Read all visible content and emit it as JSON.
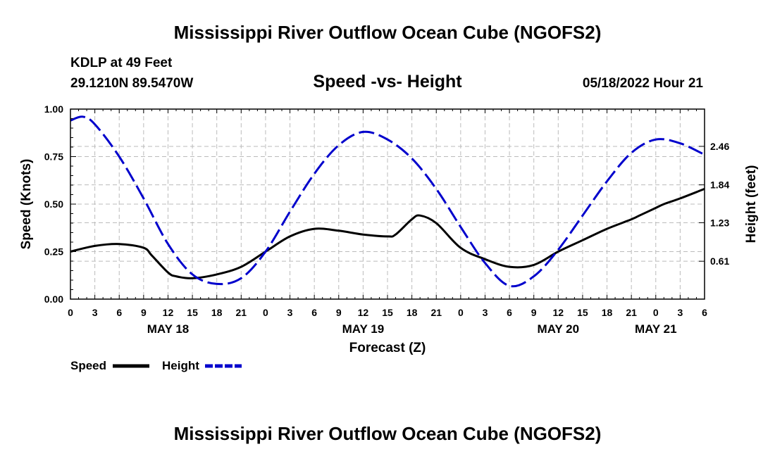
{
  "chart_data": {
    "type": "line",
    "title": "Mississippi River Outflow Ocean Cube (NGOFS2)",
    "footer_title": "Mississippi River Outflow Ocean Cube (NGOFS2)",
    "station": "KDLP at 49 Feet",
    "coordinates": "29.1210N  89.5470W",
    "subtitle": "Speed -vs- Height",
    "timestamp": "05/18/2022 Hour 21",
    "xlabel": "Forecast (Z)",
    "ylabel_left": "Speed (Knots)",
    "ylabel_right": "Height (feet)",
    "x_range_hours": [
      0,
      78
    ],
    "x_tick_step_hours": 3,
    "x_tick_labels": [
      "0",
      "3",
      "6",
      "9",
      "12",
      "15",
      "18",
      "21",
      "0",
      "3",
      "6",
      "9",
      "12",
      "15",
      "18",
      "21",
      "0",
      "3",
      "6",
      "9",
      "12",
      "15",
      "18",
      "21",
      "0",
      "3",
      "6"
    ],
    "day_labels": [
      {
        "label": "MAY 18",
        "hour": 12
      },
      {
        "label": "MAY 19",
        "hour": 36
      },
      {
        "label": "MAY 20",
        "hour": 60
      },
      {
        "label": "MAY 21",
        "hour": 72
      }
    ],
    "ylim_left": [
      0,
      1.0
    ],
    "yticks_left": [
      {
        "value": 0.0,
        "label": "0.00"
      },
      {
        "value": 0.25,
        "label": "0.25"
      },
      {
        "value": 0.5,
        "label": "0.50"
      },
      {
        "value": 0.75,
        "label": "0.75"
      },
      {
        "value": 1.0,
        "label": "1.00"
      }
    ],
    "ylim_right": [
      0.0,
      3.06
    ],
    "yticks_right": [
      {
        "value": 0.61,
        "label": "0.61"
      },
      {
        "value": 1.23,
        "label": "1.23"
      },
      {
        "value": 1.84,
        "label": "1.84"
      },
      {
        "value": 2.46,
        "label": "2.46"
      }
    ],
    "grid": true,
    "legend_position": "bottom-left",
    "series": [
      {
        "name": "Speed",
        "axis": "left",
        "color": "#000000",
        "style": "solid",
        "x": [
          0,
          3,
          6,
          9,
          10,
          12,
          13,
          15,
          18,
          21,
          24,
          27,
          30,
          33,
          36,
          39,
          40,
          42,
          43,
          45,
          48,
          51,
          54,
          57,
          60,
          63,
          66,
          69,
          70,
          72,
          73,
          75,
          78
        ],
        "y": [
          0.25,
          0.28,
          0.29,
          0.27,
          0.23,
          0.14,
          0.12,
          0.11,
          0.13,
          0.17,
          0.25,
          0.33,
          0.37,
          0.36,
          0.34,
          0.33,
          0.34,
          0.42,
          0.44,
          0.4,
          0.27,
          0.21,
          0.17,
          0.18,
          0.25,
          0.31,
          0.37,
          0.42,
          0.44,
          0.48,
          0.5,
          0.53,
          0.58
        ]
      },
      {
        "name": "Height",
        "axis": "left",
        "color": "#0000cc",
        "style": "dashed",
        "x": [
          0,
          1.5,
          3,
          6,
          9,
          12,
          15,
          18,
          21,
          24,
          27,
          30,
          33,
          36,
          39,
          42,
          45,
          48,
          51,
          54,
          57,
          60,
          63,
          66,
          69,
          72,
          75,
          78
        ],
        "y": [
          0.94,
          0.96,
          0.92,
          0.75,
          0.53,
          0.29,
          0.13,
          0.08,
          0.11,
          0.25,
          0.46,
          0.66,
          0.81,
          0.88,
          0.84,
          0.74,
          0.58,
          0.38,
          0.19,
          0.07,
          0.12,
          0.26,
          0.44,
          0.62,
          0.77,
          0.84,
          0.82,
          0.76
        ]
      }
    ]
  }
}
